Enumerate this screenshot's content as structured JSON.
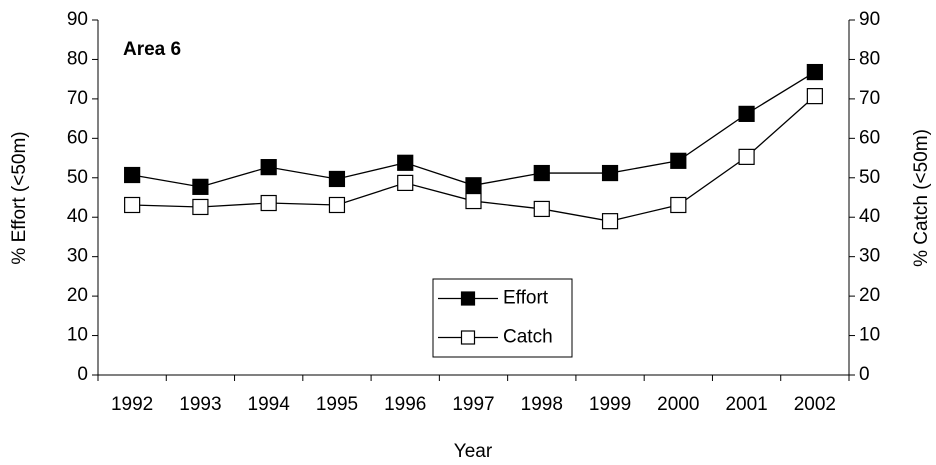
{
  "chart_data": {
    "type": "line",
    "annotation": "Area 6",
    "x_label": "Year",
    "y_label": "% Effort (<50m)",
    "y2_label": "% Catch (<50m)",
    "categories": [
      "1992",
      "1993",
      "1994",
      "1995",
      "1996",
      "1997",
      "1998",
      "1999",
      "2000",
      "2001",
      "2002"
    ],
    "series": [
      {
        "name": "Effort",
        "color": "#000000",
        "marker": "filled-square",
        "values": [
          50.7,
          47.7,
          52.7,
          49.7,
          53.8,
          48.1,
          51.2,
          51.2,
          54.3,
          66.2,
          76.8
        ]
      },
      {
        "name": "Catch",
        "color": "#000000",
        "marker": "open-square",
        "axis": "y2",
        "values": [
          43.1,
          42.6,
          43.6,
          43.1,
          48.7,
          44.1,
          42.1,
          39.0,
          43.1,
          55.3,
          70.7
        ]
      }
    ],
    "ylim": [
      0,
      90
    ],
    "yticks": [
      0,
      10,
      20,
      30,
      40,
      50,
      60,
      70,
      80,
      90
    ],
    "y2lim": [
      0,
      90
    ],
    "y2ticks": [
      0,
      10,
      20,
      30,
      40,
      50,
      60,
      70,
      80,
      90
    ],
    "grid": false,
    "legend": "bottom-center"
  }
}
